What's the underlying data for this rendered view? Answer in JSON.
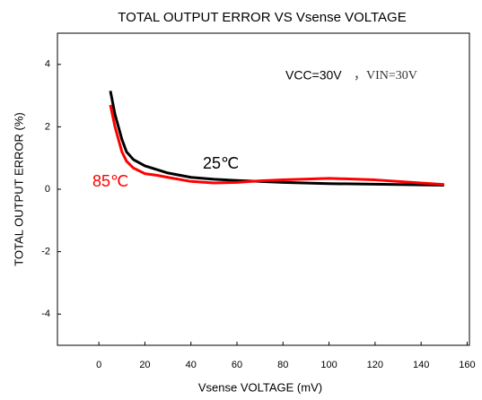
{
  "chart_data": {
    "type": "line",
    "title": "TOTAL OUTPUT ERROR  VS  Vsense VOLTAGE",
    "xlabel": "Vsense VOLTAGE  (mV)",
    "ylabel": "TOTAL OUTPUT ERROR  (%)",
    "annotations": [
      "VCC=30V",
      "，VIN=30V",
      "25℃",
      "85℃"
    ],
    "series": [
      {
        "name": "25℃",
        "color": "#000000",
        "x": [
          5,
          7,
          10,
          12,
          15,
          20,
          30,
          40,
          50,
          60,
          80,
          100,
          120,
          150
        ],
        "values": [
          3.15,
          2.4,
          1.6,
          1.2,
          0.95,
          0.75,
          0.52,
          0.38,
          0.32,
          0.28,
          0.22,
          0.18,
          0.16,
          0.13
        ]
      },
      {
        "name": "85℃",
        "color": "#ff0000",
        "x": [
          5,
          7,
          10,
          12,
          15,
          20,
          25,
          30,
          40,
          50,
          60,
          70,
          80,
          100,
          120,
          150
        ],
        "values": [
          2.7,
          2.0,
          1.2,
          0.9,
          0.68,
          0.5,
          0.45,
          0.38,
          0.25,
          0.2,
          0.22,
          0.27,
          0.3,
          0.35,
          0.3,
          0.15
        ]
      }
    ],
    "xlim": [
      -18,
      161
    ],
    "xticks": [
      0,
      20,
      40,
      60,
      80,
      100,
      120,
      140,
      160
    ],
    "ylim": [
      -5,
      5
    ],
    "yticks": [
      -4,
      -2,
      0,
      2,
      4
    ],
    "grid": false
  }
}
